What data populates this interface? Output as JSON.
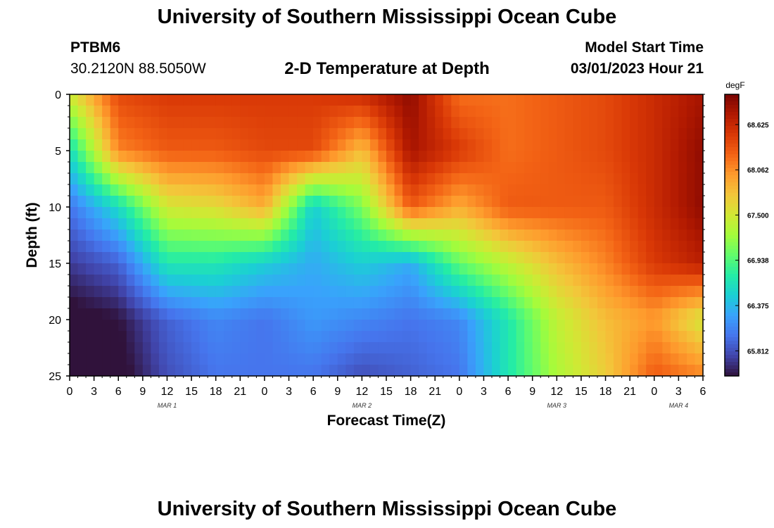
{
  "header": {
    "title": "University of Southern Mississippi Ocean Cube",
    "station_id": "PTBM6",
    "station_coords": "30.2120N  88.5050W",
    "subtitle": "2-D Temperature at Depth",
    "model_start_label": "Model Start Time",
    "model_start_value": "03/01/2023 Hour 21"
  },
  "footer": {
    "title": "University of Southern Mississippi Ocean Cube"
  },
  "chart_data": {
    "type": "heatmap",
    "title": "2-D Temperature at Depth",
    "xlabel": "Forecast Time(Z)",
    "ylabel": "Depth (ft)",
    "x_tick_labels": [
      "0",
      "3",
      "6",
      "9",
      "12",
      "15",
      "18",
      "21",
      "0",
      "3",
      "6",
      "9",
      "12",
      "15",
      "18",
      "21",
      "0",
      "3",
      "6",
      "9",
      "12",
      "15",
      "18",
      "21",
      "0",
      "3",
      "6"
    ],
    "x_range_hours": [
      0,
      78
    ],
    "day_labels": [
      {
        "label": "MAR 1",
        "hour": 12
      },
      {
        "label": "MAR 2",
        "hour": 36
      },
      {
        "label": "MAR 3",
        "hour": 60
      },
      {
        "label": "MAR 4",
        "hour": 75
      }
    ],
    "y_tick_labels": [
      "0",
      "5",
      "10",
      "15",
      "20",
      "25"
    ],
    "ylim": [
      0,
      25
    ],
    "y_inverted": true,
    "colorbar": {
      "unit": "degF",
      "tick_labels": [
        "65.812",
        "66.375",
        "66.938",
        "67.500",
        "68.062",
        "68.625"
      ],
      "range": [
        65.5,
        69.0
      ],
      "colormap": [
        "#30123b",
        "#4145ab",
        "#4675ed",
        "#39a2fc",
        "#1bcfd4",
        "#24eca6",
        "#61fc6c",
        "#a4fc3b",
        "#d1e834",
        "#f3c63a",
        "#fe9b2d",
        "#f36315",
        "#d93806",
        "#b11901",
        "#7a0402"
      ]
    },
    "hours": [
      0,
      6,
      12,
      18,
      24,
      30,
      36,
      42,
      48,
      54,
      60,
      66,
      72,
      78
    ],
    "depths_ft": [
      0,
      5,
      10,
      15,
      20,
      25
    ],
    "values_degF": [
      [
        67.5,
        68.4,
        68.5,
        68.5,
        68.5,
        68.5,
        68.6,
        68.9,
        68.2,
        68.2,
        68.3,
        68.4,
        68.6,
        68.8
      ],
      [
        66.6,
        68.1,
        68.3,
        68.3,
        68.4,
        68.4,
        67.8,
        68.8,
        68.5,
        68.2,
        68.3,
        68.4,
        68.6,
        68.9
      ],
      [
        66.0,
        66.6,
        67.5,
        67.6,
        67.9,
        66.5,
        67.1,
        68.3,
        67.9,
        68.3,
        68.3,
        68.3,
        68.6,
        68.9
      ],
      [
        65.7,
        65.9,
        66.7,
        66.7,
        66.5,
        66.3,
        66.5,
        66.3,
        67.0,
        67.4,
        67.8,
        68.1,
        68.5,
        68.7
      ],
      [
        65.4,
        65.5,
        65.9,
        66.1,
        66.0,
        66.2,
        66.1,
        66.0,
        66.1,
        66.7,
        67.4,
        67.8,
        68.0,
        67.5
      ],
      [
        65.4,
        65.4,
        65.8,
        66.0,
        66.0,
        66.0,
        65.8,
        65.9,
        66.0,
        66.7,
        67.3,
        67.7,
        68.3,
        68.1
      ]
    ]
  }
}
